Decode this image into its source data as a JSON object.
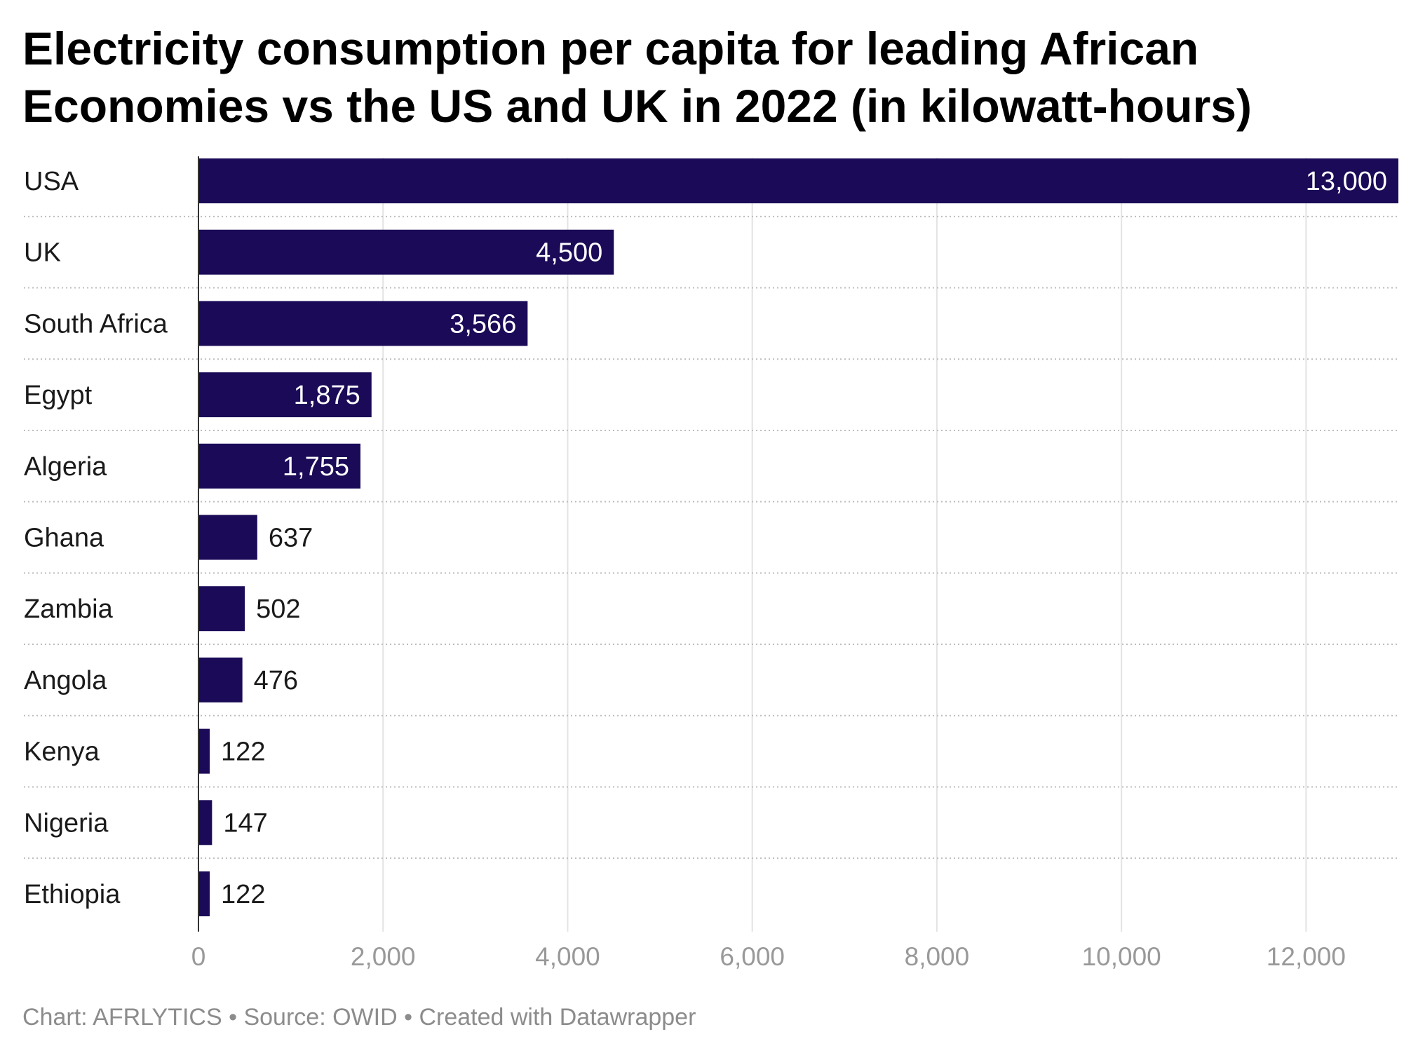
{
  "title": "Electricity consumption per capita for leading African Economies vs the US and UK in 2022 (in kilowatt-hours)",
  "footer": {
    "chart": "Chart: AFRLYTICS",
    "separator": " • ",
    "source": "Source: OWID",
    "created": "Created with Datawrapper"
  },
  "colors": {
    "bar": "#1b0a57",
    "grid": "#e3e3e3",
    "tick": "#999999",
    "label_inside": "#ffffff",
    "label_outside": "#1a1a1a"
  },
  "chart_data": {
    "type": "bar",
    "orientation": "horizontal",
    "title": "Electricity consumption per capita for leading African Economies vs the US and UK in 2022 (in kilowatt-hours)",
    "categories": [
      "USA",
      "UK",
      "South Africa",
      "Egypt",
      "Algeria",
      "Ghana",
      "Zambia",
      "Angola",
      "Kenya",
      "Nigeria",
      "Ethiopia"
    ],
    "values": [
      13000,
      4500,
      3566,
      1875,
      1755,
      637,
      502,
      476,
      122,
      147,
      122
    ],
    "value_labels": [
      "13,000",
      "4,500",
      "3,566",
      "1,875",
      "1,755",
      "637",
      "502",
      "476",
      "122",
      "147",
      "122"
    ],
    "xlim": [
      0,
      13000
    ],
    "x_ticks": [
      0,
      2000,
      4000,
      6000,
      8000,
      10000,
      12000
    ],
    "x_tick_labels": [
      "0",
      "2,000",
      "4,000",
      "6,000",
      "8,000",
      "10,000",
      "12,000"
    ],
    "grid": true,
    "xlabel": "",
    "ylabel": ""
  }
}
